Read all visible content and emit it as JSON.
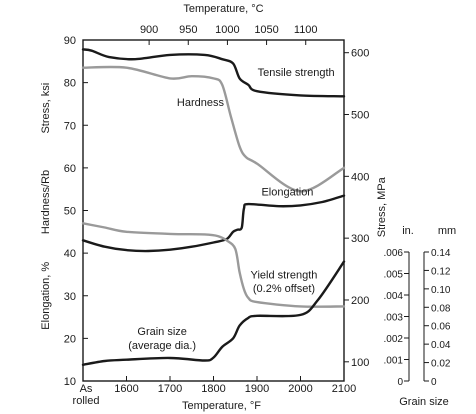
{
  "chart_data": {
    "type": "line",
    "x_bottom": {
      "label": "Temperature, °F",
      "range": [
        1500,
        2100
      ],
      "ticks": [
        1600,
        1700,
        1800,
        1900,
        2000,
        2100
      ],
      "tick_labels": [
        "1600",
        "1700",
        "1800",
        "1900",
        "2000",
        "2100"
      ],
      "start_label": [
        "As",
        "rolled"
      ]
    },
    "x_top": {
      "label": "Temperature, °C",
      "ticks": [
        900,
        950,
        1000,
        1050,
        1100
      ],
      "tick_labels": [
        "900",
        "950",
        "1000",
        "1050",
        "1100"
      ]
    },
    "y_left": {
      "range": [
        10,
        90
      ],
      "ticks": [
        10,
        20,
        30,
        40,
        50,
        60,
        70,
        80,
        90
      ],
      "labels": [
        "Elongation, %",
        "Hardness/Rb",
        "Stress, ksi"
      ]
    },
    "y_right": {
      "label": "Stress, MPa",
      "ticks": [
        100,
        200,
        300,
        400,
        500,
        600
      ],
      "tick_labels": [
        "100",
        "200",
        "300",
        "400",
        "500",
        "600"
      ]
    },
    "grain_axes": {
      "label": "Grain size",
      "inch": {
        "unit": "in.",
        "ticks": [
          0,
          0.001,
          0.002,
          0.003,
          0.004,
          0.005,
          0.006
        ],
        "tick_labels": [
          "0",
          ".001",
          ".002",
          ".003",
          ".004",
          ".005",
          ".006"
        ]
      },
      "mm": {
        "unit": "mm",
        "ticks": [
          0,
          0.02,
          0.04,
          0.06,
          0.08,
          0.1,
          0.12,
          0.14
        ],
        "tick_labels": [
          "0",
          "0.02",
          "0.04",
          "0.06",
          "0.08",
          "0.10",
          "0.12",
          "0.14"
        ]
      }
    },
    "series": [
      {
        "name": "Tensile strength",
        "color": "#1a1a1a",
        "x": [
          1500,
          1520,
          1560,
          1620,
          1700,
          1780,
          1820,
          1845,
          1860,
          1880,
          1900,
          2000,
          2100
        ],
        "y": [
          87.8,
          87.5,
          86.0,
          85.5,
          86.5,
          86.5,
          85.5,
          84.5,
          81.0,
          79.5,
          78.0,
          77.0,
          76.8
        ]
      },
      {
        "name": "Hardness",
        "color": "#9a9a9a",
        "x": [
          1500,
          1600,
          1700,
          1750,
          1800,
          1820,
          1840,
          1860,
          1875,
          1900,
          2000,
          2100
        ],
        "y": [
          83.5,
          83.5,
          81.0,
          81.5,
          81.0,
          79.5,
          72.0,
          65.0,
          62.5,
          61.0,
          54.5,
          60.0
        ]
      },
      {
        "name": "Elongation",
        "color": "#1a1a1a",
        "x": [
          1500,
          1550,
          1600,
          1650,
          1700,
          1750,
          1800,
          1830,
          1845,
          1855,
          1865,
          1870,
          1880,
          1950,
          2000,
          2050,
          2100
        ],
        "y": [
          43.0,
          41.5,
          40.7,
          40.5,
          40.8,
          41.5,
          42.5,
          43.3,
          45.0,
          45.5,
          46.0,
          50.5,
          51.5,
          51.0,
          51.2,
          52.0,
          53.5
        ]
      },
      {
        "name": "Yield strength (0.2% offset)",
        "color": "#9a9a9a",
        "x": [
          1500,
          1550,
          1600,
          1700,
          1780,
          1810,
          1830,
          1850,
          1860,
          1870,
          1880,
          1900,
          2000,
          2100
        ],
        "y": [
          47.0,
          46.0,
          45.0,
          44.5,
          44.4,
          44.0,
          43.0,
          41.0,
          35.5,
          31.5,
          29.5,
          28.5,
          27.5,
          27.5
        ]
      },
      {
        "name": "Grain size (average dia.)",
        "color": "#1a1a1a",
        "x": [
          1500,
          1550,
          1600,
          1700,
          1780,
          1800,
          1820,
          1845,
          1860,
          1880,
          1900,
          2000,
          2040,
          2100
        ],
        "y": [
          13.8,
          14.7,
          15.0,
          15.4,
          14.8,
          15.5,
          18.0,
          20.0,
          23.0,
          24.8,
          25.3,
          25.5,
          29.0,
          38.0
        ]
      }
    ],
    "annotations": [
      {
        "text": "Tensile strength",
        "x": 1990,
        "y": 82.5
      },
      {
        "text": "Hardness",
        "x": 1770,
        "y": 75.5
      },
      {
        "text": "Elongation",
        "x": 1970,
        "y": 54.5
      },
      {
        "text": "Yield strength",
        "x": 1962,
        "y": 35.0
      },
      {
        "text": "(0.2% offset)",
        "x": 1962,
        "y": 31.8
      },
      {
        "text": "Grain size",
        "x": 1682,
        "y": 21.7
      },
      {
        "text": "(average dia.)",
        "x": 1682,
        "y": 18.5
      }
    ],
    "grid": false
  }
}
